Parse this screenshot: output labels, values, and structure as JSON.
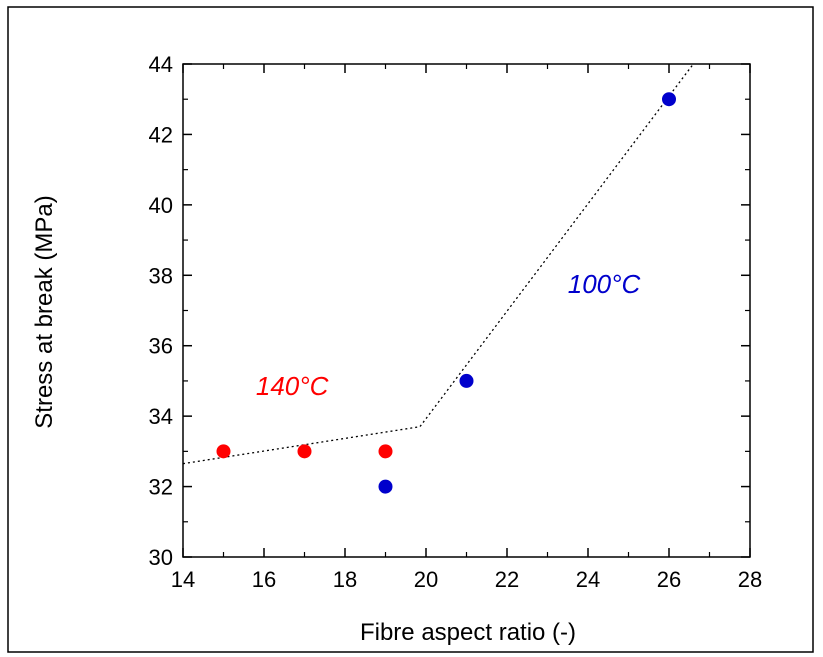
{
  "chart_data": {
    "type": "scatter",
    "xlabel": "Fibre aspect ratio  (-)",
    "ylabel": "Stress at break (MPa)",
    "xlim": [
      14,
      28
    ],
    "ylim": [
      30,
      44
    ],
    "xticks": [
      14,
      16,
      18,
      20,
      22,
      24,
      26,
      28
    ],
    "yticks": [
      30,
      32,
      34,
      36,
      38,
      40,
      42,
      44
    ],
    "grid": false,
    "series": [
      {
        "color": "#ff0000",
        "points": [
          {
            "x": 15,
            "y": 33
          },
          {
            "x": 17,
            "y": 33
          },
          {
            "x": 19,
            "y": 33
          }
        ]
      },
      {
        "color": "#0000cc",
        "points": [
          {
            "x": 19,
            "y": 32
          },
          {
            "x": 21,
            "y": 35
          },
          {
            "x": 26,
            "y": 43
          }
        ]
      }
    ],
    "trend_line": {
      "style": "dotted",
      "points": [
        {
          "x": 14,
          "y": 32.65
        },
        {
          "x": 19.85,
          "y": 33.7
        },
        {
          "x": 26.6,
          "y": 44
        }
      ]
    },
    "annotations": [
      {
        "text": "140°C",
        "x": 15.8,
        "y": 34.6,
        "color": "#ff0000"
      },
      {
        "text": "100°C",
        "x": 23.5,
        "y": 37.5,
        "color": "#0000cc"
      }
    ]
  }
}
